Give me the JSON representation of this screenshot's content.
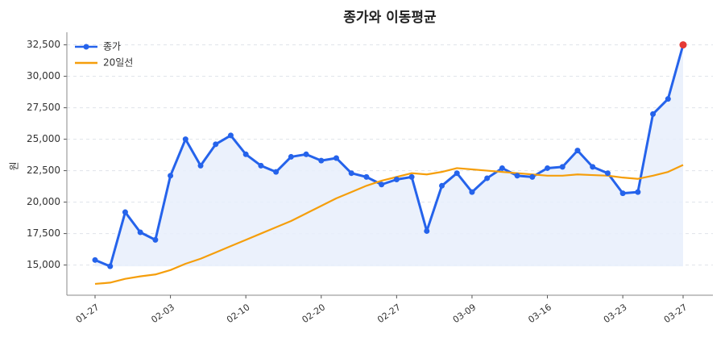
{
  "chart_data": {
    "type": "line",
    "title": "종가와 이동평균",
    "ylabel": "원",
    "categories": [
      "01-27",
      null,
      null,
      null,
      null,
      "02-03",
      null,
      null,
      null,
      null,
      "02-10",
      null,
      null,
      null,
      null,
      "02-20",
      null,
      null,
      null,
      null,
      "02-27",
      null,
      null,
      null,
      null,
      "03-09",
      null,
      null,
      null,
      null,
      "03-16",
      null,
      null,
      null,
      null,
      "03-23",
      null,
      null,
      null,
      "03-27"
    ],
    "series": [
      {
        "name": "종가",
        "color": "#2563eb",
        "markers": true,
        "fill": "#e8eefb",
        "last_point_color": "#e53935",
        "values": [
          15400,
          14900,
          19200,
          17600,
          17000,
          22100,
          25000,
          22900,
          24600,
          25300,
          23800,
          22900,
          22400,
          23600,
          23800,
          23300,
          23500,
          22300,
          22000,
          21400,
          21800,
          22000,
          17700,
          21300,
          22300,
          20800,
          21900,
          22700,
          22100,
          22000,
          22700,
          22800,
          24100,
          22800,
          22300,
          20700,
          20800,
          27000,
          28200,
          32500
        ]
      },
      {
        "name": "20일선",
        "color": "#f59e0b",
        "markers": false,
        "values": [
          13500,
          13600,
          13900,
          14100,
          14250,
          14600,
          15100,
          15500,
          16000,
          16500,
          17000,
          17500,
          18000,
          18500,
          19100,
          19700,
          20300,
          20800,
          21300,
          21700,
          22000,
          22300,
          22200,
          22400,
          22700,
          22600,
          22500,
          22400,
          22300,
          22200,
          22100,
          22100,
          22200,
          22150,
          22100,
          21950,
          21850,
          22100,
          22400,
          22950
        ]
      }
    ],
    "ylim": [
      12600,
      33500
    ],
    "yticks": [
      {
        "value": 15000,
        "label": "15,000"
      },
      {
        "value": 17500,
        "label": "17,500"
      },
      {
        "value": 20000,
        "label": "20,000"
      },
      {
        "value": 22500,
        "label": "22,500"
      },
      {
        "value": 25000,
        "label": "25,000"
      },
      {
        "value": 27500,
        "label": "27,500"
      },
      {
        "value": 30000,
        "label": "30,000"
      },
      {
        "value": 32500,
        "label": "32,500"
      }
    ],
    "grid": true,
    "legend": "upper-left"
  }
}
